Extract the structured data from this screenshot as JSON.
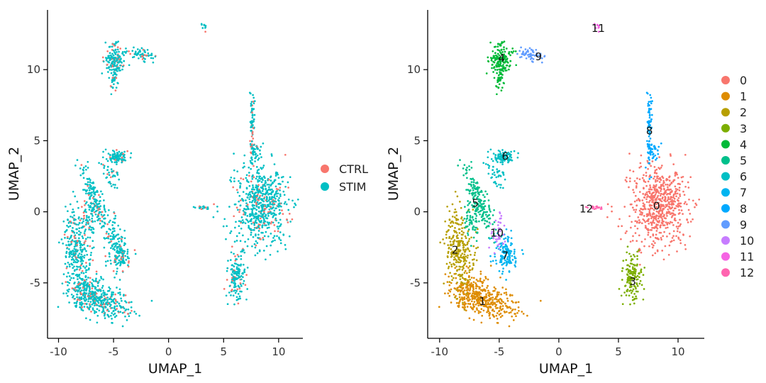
{
  "chart_data": [
    {
      "type": "scatter",
      "panel": "left",
      "xlabel": "UMAP_1",
      "ylabel": "UMAP_2",
      "xlim": [
        -11,
        12.2
      ],
      "ylim": [
        -8.9,
        14.2
      ],
      "x_ticks": [
        -10,
        -5,
        0,
        5,
        10
      ],
      "y_ticks": [
        -5,
        0,
        5,
        10
      ],
      "x_tick_labels": [
        "-10",
        "-5",
        "0",
        "5",
        "10"
      ],
      "y_tick_labels": [
        "-5",
        "0",
        "5",
        "10"
      ],
      "grid": false,
      "legend_position": "right",
      "series": [
        {
          "name": "CTRL",
          "color": "#F8766D"
        },
        {
          "name": "STIM",
          "color": "#00BFC4"
        }
      ]
    },
    {
      "type": "scatter",
      "panel": "right",
      "xlabel": "UMAP_1",
      "ylabel": "UMAP_2",
      "xlim": [
        -11,
        12.2
      ],
      "ylim": [
        -8.9,
        14.2
      ],
      "x_ticks": [
        -10,
        -5,
        0,
        5,
        10
      ],
      "y_ticks": [
        -5,
        0,
        5,
        10
      ],
      "x_tick_labels": [
        "-10",
        "-5",
        "0",
        "5",
        "10"
      ],
      "y_tick_labels": [
        "-5",
        "0",
        "5",
        "10"
      ],
      "grid": false,
      "legend_position": "right",
      "series": [
        {
          "name": "0",
          "color": "#F8766D",
          "label_at": [
            8.2,
            0.4
          ]
        },
        {
          "name": "1",
          "color": "#DE8C00",
          "label_at": [
            -6.4,
            -6.3
          ]
        },
        {
          "name": "2",
          "color": "#B79F00",
          "label_at": [
            -8.7,
            -2.7
          ]
        },
        {
          "name": "3",
          "color": "#7CAE00",
          "label_at": [
            6.2,
            -4.9
          ]
        },
        {
          "name": "4",
          "color": "#00BA38",
          "label_at": [
            -4.8,
            10.8
          ]
        },
        {
          "name": "5",
          "color": "#00C08B",
          "label_at": [
            -7.0,
            0.6
          ]
        },
        {
          "name": "6",
          "color": "#00BFC4",
          "label_at": [
            -4.5,
            3.9
          ]
        },
        {
          "name": "7",
          "color": "#00B4F0",
          "label_at": [
            -4.5,
            -3.1
          ]
        },
        {
          "name": "8",
          "color": "#00A9FF",
          "label_at": [
            7.6,
            5.7
          ]
        },
        {
          "name": "9",
          "color": "#619CFF",
          "label_at": [
            -1.7,
            10.9
          ]
        },
        {
          "name": "10",
          "color": "#C77CFF",
          "label_at": [
            -5.2,
            -1.5
          ]
        },
        {
          "name": "11",
          "color": "#F564E3",
          "label_at": [
            3.3,
            12.9
          ]
        },
        {
          "name": "12",
          "color": "#FF64B0",
          "label_at": [
            2.3,
            0.2
          ]
        }
      ]
    }
  ]
}
